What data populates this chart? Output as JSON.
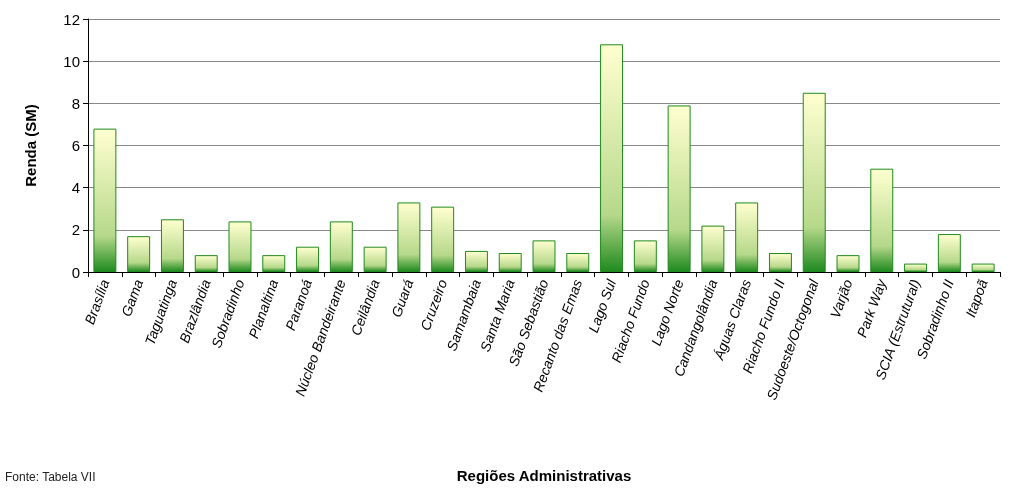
{
  "chart_data": {
    "type": "bar",
    "xlabel": "Regiões Administrativas",
    "ylabel": "Renda (SM)",
    "annotations": [
      "Fonte: Tabela VII"
    ],
    "categories": [
      "Brasília",
      "Gama",
      "Taguatinga",
      "Brazlândia",
      "Sobradinho",
      "Planaltina",
      "Paranoá",
      "Núcleo Bandeirante",
      "Ceilândia",
      "Guará",
      "Cruzeiro",
      "Samambaia",
      "Santa Maria",
      "São Sebastião",
      "Recanto das Emas",
      "Lago Sul",
      "Riacho Fundo",
      "Lago Norte",
      "Candangolândia",
      "Águas Claras",
      "Riacho Fundo II",
      "Sudoeste/Octogonal",
      "Varjão",
      "Park Way",
      "SCIA (Estrutural)",
      "Sobradinho II",
      "Itapoã"
    ],
    "values": [
      6.8,
      1.7,
      2.5,
      0.8,
      2.4,
      0.8,
      1.2,
      2.4,
      1.2,
      3.3,
      3.1,
      1.0,
      0.9,
      1.5,
      0.9,
      10.8,
      1.5,
      7.9,
      2.2,
      3.3,
      0.9,
      8.5,
      0.8,
      4.9,
      0.4,
      1.8,
      0.4
    ],
    "color": "#1f8a1f",
    "ylim": [
      0,
      12
    ],
    "yticks": [
      0,
      2,
      4,
      6,
      8,
      10,
      12
    ],
    "grid": "y"
  }
}
